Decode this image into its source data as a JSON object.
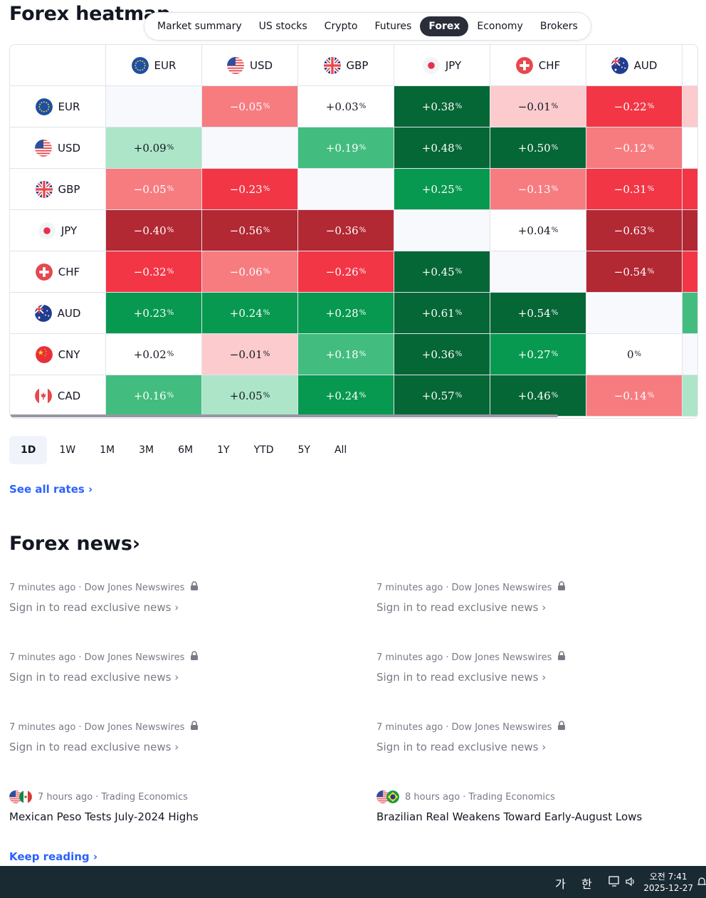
{
  "heatmap": {
    "title": "Forex heatmap",
    "chevron": "›",
    "tabs": [
      "Market summary",
      "US stocks",
      "Crypto",
      "Futures",
      "Forex",
      "Economy",
      "Brokers"
    ],
    "active_tab": "Forex",
    "columns": [
      "EUR",
      "USD",
      "GBP",
      "JPY",
      "CHF",
      "AUD"
    ],
    "rows": [
      {
        "currency": "EUR",
        "values": [
          "",
          "−0.05",
          "+0.03",
          "+0.38",
          "−0.01",
          "−0.22"
        ],
        "colors": [
          "#f8f9fd",
          "#f77c80",
          "#ffffff",
          "#056636",
          "#fccbcd",
          "#f23645",
          "#fccbcd"
        ]
      },
      {
        "currency": "USD",
        "values": [
          "+0.09",
          "",
          "+0.19",
          "+0.48",
          "+0.50",
          "−0.12"
        ],
        "colors": [
          "#ace5c8",
          "#f8f9fd",
          "#42bd7f",
          "#056636",
          "#056636",
          "#f77c80",
          "#ffffff"
        ]
      },
      {
        "currency": "GBP",
        "values": [
          "−0.05",
          "−0.23",
          "",
          "+0.25",
          "−0.13",
          "−0.31"
        ],
        "colors": [
          "#f77c80",
          "#f23645",
          "#f8f9fd",
          "#089950",
          "#f77c80",
          "#f23645",
          "#f23645"
        ]
      },
      {
        "currency": "JPY",
        "values": [
          "−0.40",
          "−0.56",
          "−0.36",
          "",
          "+0.04",
          "−0.63"
        ],
        "colors": [
          "#b22833",
          "#b22833",
          "#b22833",
          "#f8f9fd",
          "#ffffff",
          "#b22833",
          "#b22833"
        ]
      },
      {
        "currency": "CHF",
        "values": [
          "−0.32",
          "−0.06",
          "−0.26",
          "+0.45",
          "",
          "−0.54"
        ],
        "colors": [
          "#f23645",
          "#f77c80",
          "#f23645",
          "#056636",
          "#f8f9fd",
          "#b22833",
          "#f23645"
        ]
      },
      {
        "currency": "AUD",
        "values": [
          "+0.23",
          "+0.24",
          "+0.28",
          "+0.61",
          "+0.54",
          ""
        ],
        "colors": [
          "#089950",
          "#089950",
          "#089950",
          "#056636",
          "#056636",
          "#f8f9fd",
          "#42bd7f"
        ]
      },
      {
        "currency": "CNY",
        "values": [
          "+0.02",
          "−0.01",
          "+0.18",
          "+0.36",
          "+0.27",
          "0"
        ],
        "colors": [
          "#ffffff",
          "#fccbcd",
          "#42bd7f",
          "#056636",
          "#089950",
          "#ffffff",
          "#f8f9fd"
        ]
      },
      {
        "currency": "CAD",
        "values": [
          "+0.16",
          "+0.05",
          "+0.24",
          "+0.57",
          "+0.46",
          "−0.14"
        ],
        "colors": [
          "#42bd7f",
          "#ace5c8",
          "#089950",
          "#056636",
          "#056636",
          "#f77c80",
          "#ace5c8"
        ]
      }
    ],
    "pct_sign": "%",
    "periods": [
      "1D",
      "1W",
      "1M",
      "3M",
      "6M",
      "1Y",
      "YTD",
      "5Y",
      "All"
    ],
    "active_period": "1D",
    "see_all": "See all rates ›"
  },
  "news": {
    "title": "Forex news",
    "chevron": "›",
    "items": [
      {
        "time": "7 minutes ago",
        "source": "Dow Jones Newswires",
        "headline": "Sign in to read exclusive news ›",
        "locked": true
      },
      {
        "time": "7 minutes ago",
        "source": "Dow Jones Newswires",
        "headline": "Sign in to read exclusive news ›",
        "locked": true
      },
      {
        "time": "7 minutes ago",
        "source": "Dow Jones Newswires",
        "headline": "Sign in to read exclusive news ›",
        "locked": true
      },
      {
        "time": "7 minutes ago",
        "source": "Dow Jones Newswires",
        "headline": "Sign in to read exclusive news ›",
        "locked": true
      },
      {
        "time": "7 minutes ago",
        "source": "Dow Jones Newswires",
        "headline": "Sign in to read exclusive news ›",
        "locked": true
      },
      {
        "time": "7 minutes ago",
        "source": "Dow Jones Newswires",
        "headline": "Sign in to read exclusive news ›",
        "locked": true
      },
      {
        "time": "7 hours ago",
        "source": "Trading Economics",
        "headline": "Mexican Peso Tests July-2024 Highs",
        "locked": false
      },
      {
        "time": "8 hours ago",
        "source": "Trading Economics",
        "headline": "Brazilian Real Weakens Toward Early-August Lows",
        "locked": false
      }
    ],
    "separator": "·",
    "keep_reading": "Keep reading ›"
  },
  "taskbar": {
    "ime_1": "가",
    "ime_2": "한",
    "time": "오전 7:41",
    "date": "2025-12-27"
  }
}
